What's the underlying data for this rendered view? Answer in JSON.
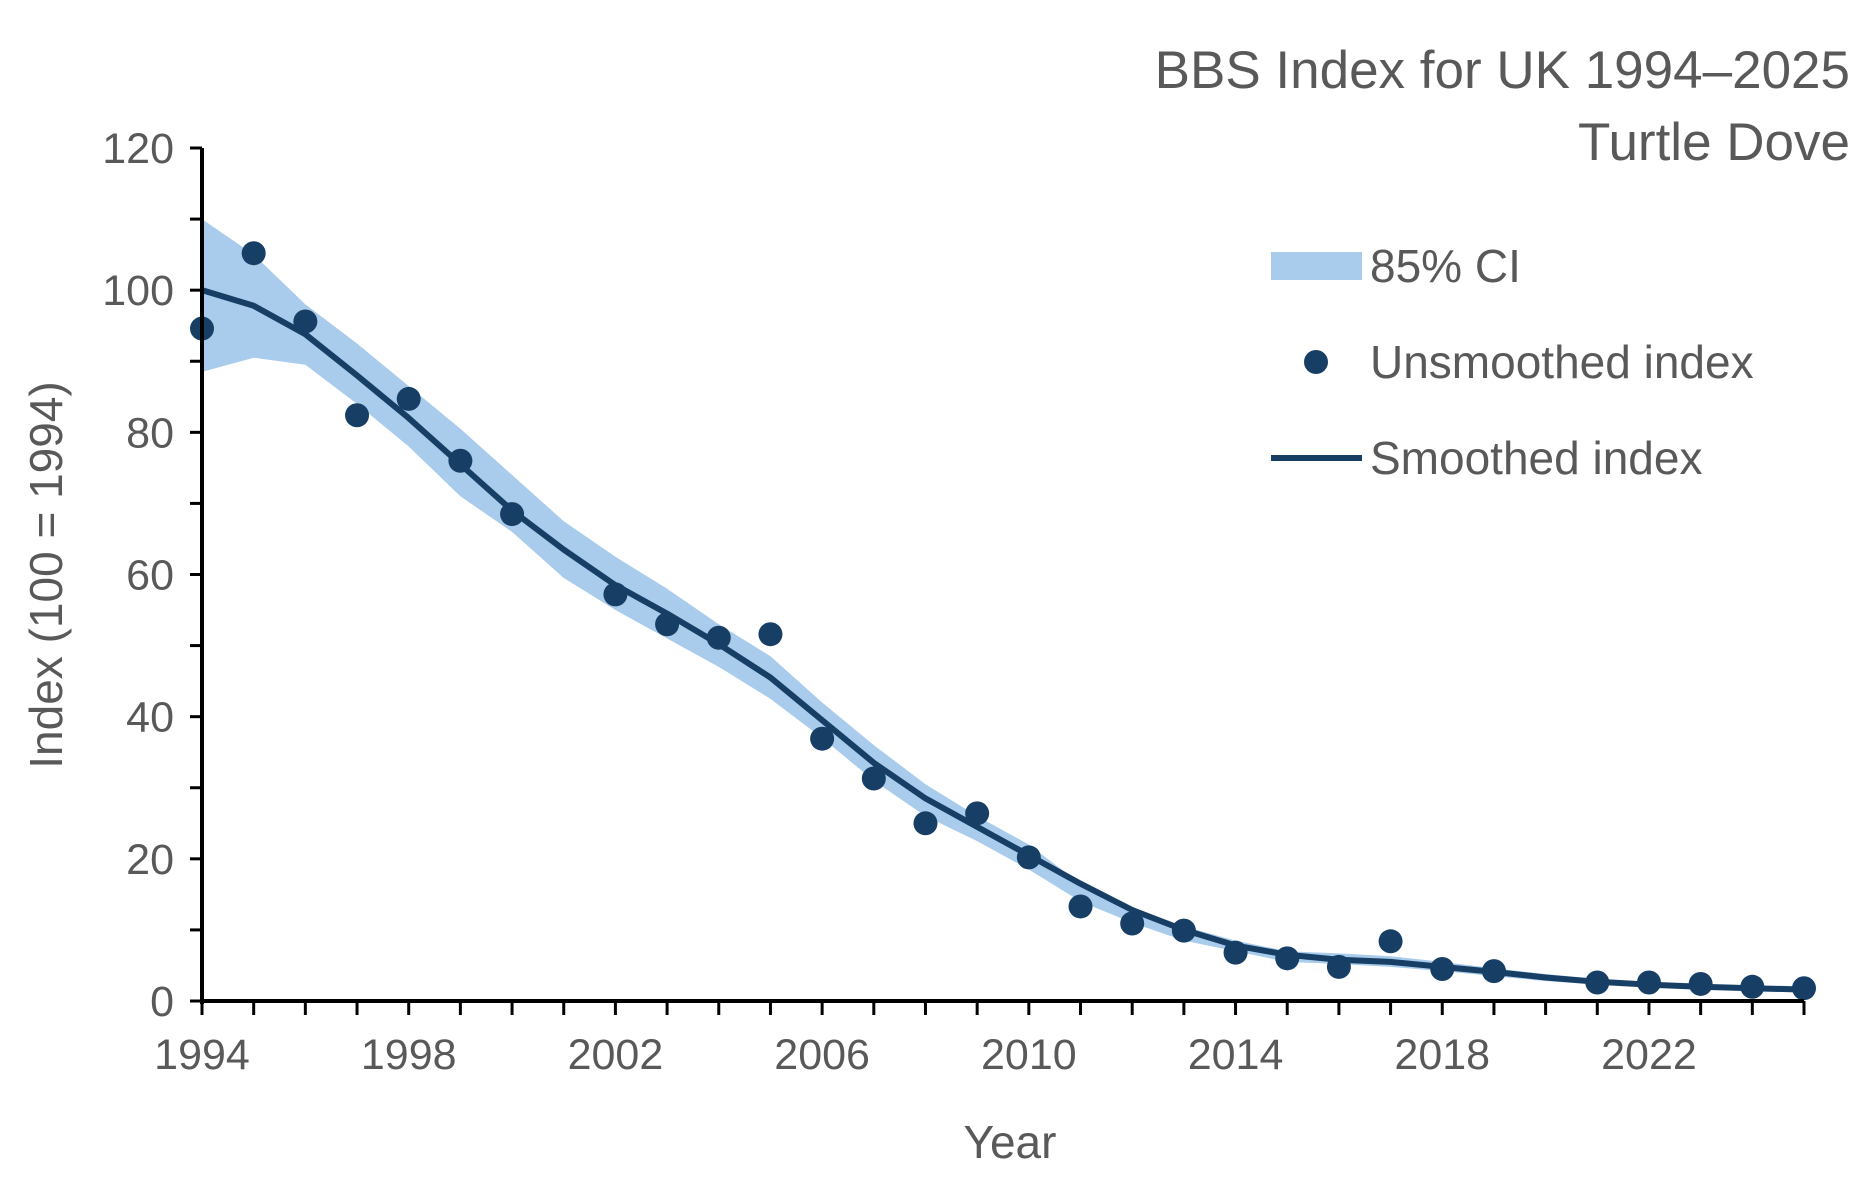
{
  "chart_data": {
    "type": "line",
    "title": "BBS Index for UK 1994–2025",
    "subtitle": "Turtle Dove",
    "xlabel": "Year",
    "ylabel": "Index (100 = 1994)",
    "xlim": [
      1994,
      2025
    ],
    "ylim": [
      0,
      120
    ],
    "x_ticks": [
      "1994",
      "1998",
      "2002",
      "2006",
      "2010",
      "2014",
      "2018",
      "2022"
    ],
    "y_ticks": [
      "0",
      "20",
      "40",
      "60",
      "80",
      "100",
      "120"
    ],
    "grid": false,
    "legend_position": "top-right",
    "colors": {
      "ci": "#a9cbec",
      "points": "#173f66",
      "line": "#173f66",
      "text": "#595959",
      "axis": "#000000"
    },
    "legend": {
      "ci": "85% CI",
      "unsmoothed": "Unsmoothed index",
      "smoothed": "Smoothed index"
    },
    "smoothed": {
      "name": "Smoothed index",
      "x": [
        1994,
        1995,
        1996,
        1997,
        1998,
        1999,
        2000,
        2001,
        2002,
        2003,
        2004,
        2005,
        2006,
        2007,
        2008,
        2009,
        2010,
        2011,
        2012,
        2013,
        2014,
        2015,
        2016,
        2017,
        2018,
        2019,
        2020,
        2021,
        2022,
        2023,
        2024,
        2025
      ],
      "y": [
        100,
        97.8,
        93.8,
        88,
        82,
        75.5,
        69,
        63.5,
        58.5,
        54.5,
        50.2,
        45.5,
        39.5,
        33.5,
        28.5,
        24.5,
        20.5,
        16.5,
        12.8,
        10,
        7.8,
        6.5,
        5.8,
        5.5,
        4.8,
        4.1,
        3.3,
        2.7,
        2.3,
        2,
        1.8,
        1.6
      ]
    },
    "ci": {
      "name": "85% CI",
      "upper": [
        110,
        105,
        98,
        92.5,
        86.5,
        80.5,
        74,
        67.5,
        62.5,
        58,
        53,
        48.5,
        42,
        36,
        30.5,
        26,
        22,
        16.5,
        13,
        10.5,
        8.5,
        7,
        6.7,
        6.3,
        5.5,
        4.6,
        3.8,
        3.1,
        2.7,
        2.4,
        2.2,
        2.1
      ],
      "lower": [
        88.5,
        90.5,
        89.5,
        84,
        78,
        71,
        66,
        59.5,
        55,
        51,
        47,
        42.5,
        37,
        31,
        26,
        22.5,
        18.5,
        14,
        11,
        8.5,
        7,
        5.5,
        5.2,
        4.8,
        4.2,
        3.5,
        2.8,
        2.3,
        2,
        1.7,
        1.5,
        1.3
      ]
    },
    "unsmoothed": {
      "name": "Unsmoothed index",
      "x": [
        1994,
        1995,
        1996,
        1997,
        1998,
        1999,
        2000,
        2002,
        2003,
        2004,
        2005,
        2006,
        2007,
        2008,
        2009,
        2010,
        2011,
        2012,
        2013,
        2014,
        2015,
        2016,
        2017,
        2018,
        2019,
        2021,
        2022,
        2023,
        2024,
        2025
      ],
      "y": [
        94.6,
        105.2,
        95.6,
        82.4,
        84.7,
        76,
        68.5,
        57.2,
        53,
        51.1,
        51.6,
        36.9,
        31.3,
        25,
        26.4,
        20.2,
        13.3,
        10.9,
        9.9,
        6.8,
        6,
        4.8,
        8.4,
        4.5,
        4.2,
        2.6,
        2.6,
        2.4,
        2,
        1.8
      ]
    }
  }
}
